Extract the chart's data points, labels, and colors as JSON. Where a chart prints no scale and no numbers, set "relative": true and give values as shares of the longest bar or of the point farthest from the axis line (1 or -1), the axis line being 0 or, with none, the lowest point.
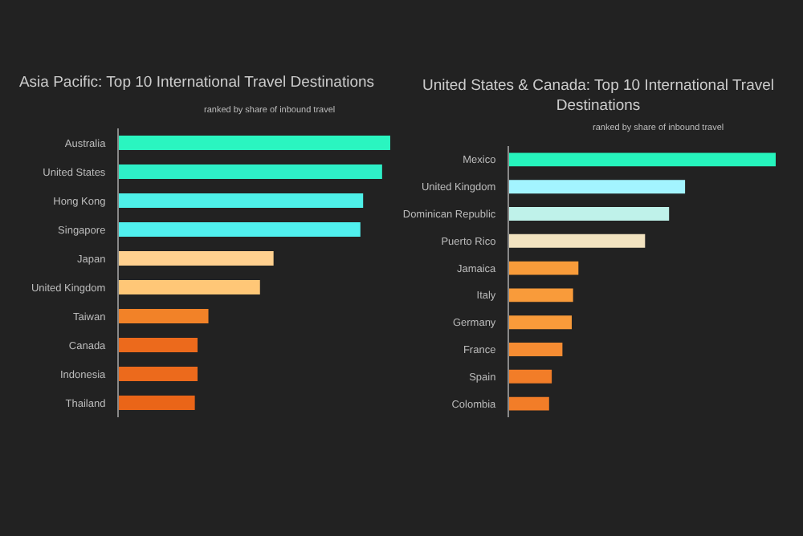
{
  "chart_data": [
    {
      "type": "bar",
      "orientation": "horizontal",
      "relative": true,
      "title": "Asia Pacific: Top 10 International Travel Destinations",
      "subtitle": "ranked by share of inbound travel",
      "categories": [
        "Australia",
        "United States",
        "Hong Kong",
        "Singapore",
        "Japan",
        "United Kingdom",
        "Taiwan",
        "Canada",
        "Indonesia",
        "Thailand"
      ],
      "values": [
        1,
        0.97,
        0.9,
        0.89,
        0.57,
        0.52,
        0.33,
        0.29,
        0.29,
        0.28
      ],
      "colors": [
        "#2af5c0",
        "#2ef0c8",
        "#4ef0e8",
        "#50f0ee",
        "#ffd08f",
        "#ffc777",
        "#f28228",
        "#ec6a1c",
        "#ec6a1c",
        "#ea6518"
      ]
    },
    {
      "type": "bar",
      "orientation": "horizontal",
      "relative": true,
      "title": "United States & Canada: Top 10 International Travel Destinations",
      "subtitle": "ranked by share of inbound travel",
      "categories": [
        "Mexico",
        "United Kingdom",
        "Dominican Republic",
        "Puerto Rico",
        "Jamaica",
        "Italy",
        "Germany",
        "France",
        "Spain",
        "Colombia"
      ],
      "values": [
        1,
        0.66,
        0.6,
        0.51,
        0.26,
        0.24,
        0.235,
        0.2,
        0.16,
        0.15
      ],
      "colors": [
        "#26f5bd",
        "#a3f4ff",
        "#bff2ea",
        "#f2e3c0",
        "#f99c3a",
        "#f99b3a",
        "#f99b3a",
        "#f68c32",
        "#f27d28",
        "#f27d28"
      ]
    }
  ]
}
